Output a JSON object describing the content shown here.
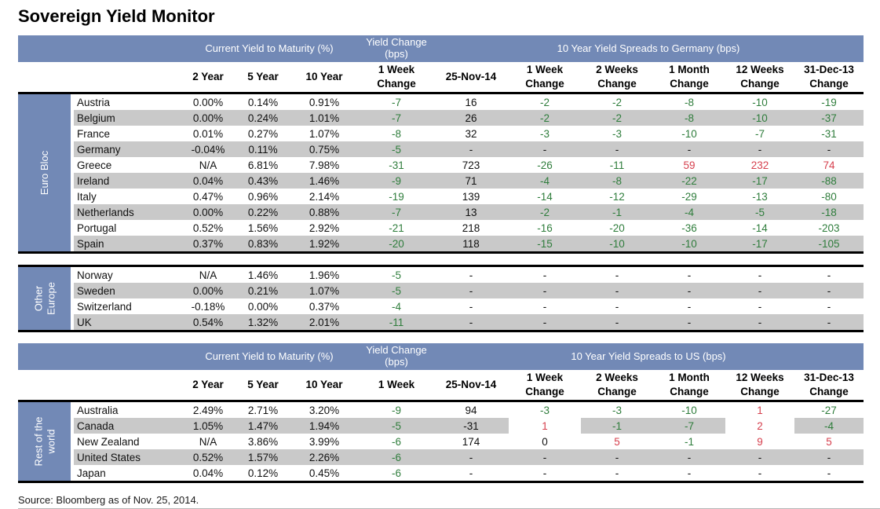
{
  "title": "Sovereign Yield Monitor",
  "source": "Source: Bloomberg as of Nov. 25, 2014.",
  "colors": {
    "header_blue": "#7289b6",
    "stripe_gray": "#c9c9c9",
    "green": "#2f7d3c",
    "red": "#d6404e",
    "text_black": "#111111"
  },
  "tables": [
    {
      "group_headers": [
        "Current Yield to Maturity (%)",
        "Yield Change\n(bps)",
        "10 Year Yield Spreads to Germany (bps)"
      ],
      "col_headers": [
        "2 Year",
        "5 Year",
        "10 Year",
        "1 Week\nChange",
        "25-Nov-14",
        "1 Week\nChange",
        "2 Weeks\nChange",
        "1 Month\nChange",
        "12 Weeks\nChange",
        "31-Dec-13\nChange"
      ],
      "sections": [
        {
          "label": "Euro Bloc",
          "rows": [
            {
              "name": "Austria",
              "cells": [
                [
                  "0.00%"
                ],
                [
                  "0.14%"
                ],
                [
                  "0.91%"
                ],
                [
                  "-7",
                  "g"
                ],
                [
                  "16"
                ],
                [
                  "-2",
                  "g"
                ],
                [
                  "-2",
                  "g"
                ],
                [
                  "-8",
                  "g"
                ],
                [
                  "-10",
                  "g"
                ],
                [
                  "-19",
                  "g"
                ]
              ]
            },
            {
              "name": "Belgium",
              "cells": [
                [
                  "0.00%"
                ],
                [
                  "0.24%"
                ],
                [
                  "1.01%"
                ],
                [
                  "-7",
                  "g"
                ],
                [
                  "26"
                ],
                [
                  "-2",
                  "g"
                ],
                [
                  "-2",
                  "g"
                ],
                [
                  "-8",
                  "g"
                ],
                [
                  "-10",
                  "g"
                ],
                [
                  "-37",
                  "g"
                ]
              ]
            },
            {
              "name": "France",
              "cells": [
                [
                  "0.01%"
                ],
                [
                  "0.27%"
                ],
                [
                  "1.07%"
                ],
                [
                  "-8",
                  "g"
                ],
                [
                  "32"
                ],
                [
                  "-3",
                  "g"
                ],
                [
                  "-3",
                  "g"
                ],
                [
                  "-10",
                  "g"
                ],
                [
                  "-7",
                  "g"
                ],
                [
                  "-31",
                  "g"
                ]
              ]
            },
            {
              "name": "Germany",
              "cells": [
                [
                  "-0.04%"
                ],
                [
                  "0.11%"
                ],
                [
                  "0.75%"
                ],
                [
                  "-5",
                  "g"
                ],
                [
                  "-"
                ],
                [
                  "-"
                ],
                [
                  "-"
                ],
                [
                  "-"
                ],
                [
                  "-"
                ],
                [
                  "-"
                ]
              ]
            },
            {
              "name": "Greece",
              "cells": [
                [
                  "N/A"
                ],
                [
                  "6.81%"
                ],
                [
                  "7.98%"
                ],
                [
                  "-31",
                  "g"
                ],
                [
                  "723"
                ],
                [
                  "-26",
                  "g"
                ],
                [
                  "-11",
                  "g"
                ],
                [
                  "59",
                  "r"
                ],
                [
                  "232",
                  "r"
                ],
                [
                  "74",
                  "r"
                ]
              ]
            },
            {
              "name": "Ireland",
              "cells": [
                [
                  "0.04%"
                ],
                [
                  "0.43%"
                ],
                [
                  "1.46%"
                ],
                [
                  "-9",
                  "g"
                ],
                [
                  "71"
                ],
                [
                  "-4",
                  "g"
                ],
                [
                  "-8",
                  "g"
                ],
                [
                  "-22",
                  "g"
                ],
                [
                  "-17",
                  "g"
                ],
                [
                  "-88",
                  "g"
                ]
              ]
            },
            {
              "name": "Italy",
              "cells": [
                [
                  "0.47%"
                ],
                [
                  "0.96%"
                ],
                [
                  "2.14%"
                ],
                [
                  "-19",
                  "g"
                ],
                [
                  "139"
                ],
                [
                  "-14",
                  "g"
                ],
                [
                  "-12",
                  "g"
                ],
                [
                  "-29",
                  "g"
                ],
                [
                  "-13",
                  "g"
                ],
                [
                  "-80",
                  "g"
                ]
              ]
            },
            {
              "name": "Netherlands",
              "cells": [
                [
                  "0.00%"
                ],
                [
                  "0.22%"
                ],
                [
                  "0.88%"
                ],
                [
                  "-7",
                  "g"
                ],
                [
                  "13"
                ],
                [
                  "-2",
                  "g"
                ],
                [
                  "-1",
                  "g"
                ],
                [
                  "-4",
                  "g"
                ],
                [
                  "-5",
                  "g"
                ],
                [
                  "-18",
                  "g"
                ]
              ]
            },
            {
              "name": "Portugal",
              "cells": [
                [
                  "0.52%"
                ],
                [
                  "1.56%"
                ],
                [
                  "2.92%"
                ],
                [
                  "-21",
                  "g"
                ],
                [
                  "218"
                ],
                [
                  "-16",
                  "g"
                ],
                [
                  "-20",
                  "g"
                ],
                [
                  "-36",
                  "g"
                ],
                [
                  "-14",
                  "g"
                ],
                [
                  "-203",
                  "g"
                ]
              ]
            },
            {
              "name": "Spain",
              "cells": [
                [
                  "0.37%"
                ],
                [
                  "0.83%"
                ],
                [
                  "1.92%"
                ],
                [
                  "-20",
                  "g"
                ],
                [
                  "118"
                ],
                [
                  "-15",
                  "g"
                ],
                [
                  "-10",
                  "g"
                ],
                [
                  "-10",
                  "g"
                ],
                [
                  "-17",
                  "g"
                ],
                [
                  "-105",
                  "g"
                ]
              ]
            }
          ]
        },
        {
          "label": "Other Europe",
          "rows": [
            {
              "name": "Norway",
              "cells": [
                [
                  "N/A"
                ],
                [
                  "1.46%"
                ],
                [
                  "1.96%"
                ],
                [
                  "-5",
                  "g"
                ],
                [
                  "-"
                ],
                [
                  "-"
                ],
                [
                  "-"
                ],
                [
                  "-"
                ],
                [
                  "-"
                ],
                [
                  "-"
                ]
              ]
            },
            {
              "name": "Sweden",
              "cells": [
                [
                  "0.00%"
                ],
                [
                  "0.21%"
                ],
                [
                  "1.07%"
                ],
                [
                  "-5",
                  "g"
                ],
                [
                  "-"
                ],
                [
                  "-"
                ],
                [
                  "-"
                ],
                [
                  "-"
                ],
                [
                  "-"
                ],
                [
                  "-"
                ]
              ]
            },
            {
              "name": "Switzerland",
              "cells": [
                [
                  "-0.18%"
                ],
                [
                  "0.00%"
                ],
                [
                  "0.37%"
                ],
                [
                  "-4",
                  "g"
                ],
                [
                  "-"
                ],
                [
                  "-"
                ],
                [
                  "-"
                ],
                [
                  "-"
                ],
                [
                  "-"
                ],
                [
                  "-"
                ]
              ]
            },
            {
              "name": "UK",
              "cells": [
                [
                  "0.54%"
                ],
                [
                  "1.32%"
                ],
                [
                  "2.01%"
                ],
                [
                  "-11",
                  "g"
                ],
                [
                  "-"
                ],
                [
                  "-"
                ],
                [
                  "-"
                ],
                [
                  "-"
                ],
                [
                  "-"
                ],
                [
                  "-"
                ]
              ]
            }
          ]
        }
      ]
    },
    {
      "group_headers": [
        "Current Yield to Maturity (%)",
        "Yield Change\n(bps)",
        "10 Year Yield Spreads to US (bps)"
      ],
      "col_headers": [
        "2 Year",
        "5 Year",
        "10 Year",
        "1 Week",
        "25-Nov-14",
        "1 Week\nChange",
        "2 Weeks\nChange",
        "1 Month\nChange",
        "12 Weeks\nChange",
        "31-Dec-13\nChange"
      ],
      "sections": [
        {
          "label": "Rest of the world",
          "rows": [
            {
              "name": "Australia",
              "cells": [
                [
                  "2.49%"
                ],
                [
                  "2.71%"
                ],
                [
                  "3.20%"
                ],
                [
                  "-9",
                  "g"
                ],
                [
                  "94"
                ],
                [
                  "-3",
                  "g"
                ],
                [
                  "-3",
                  "g"
                ],
                [
                  "-10",
                  "g"
                ],
                [
                  "1",
                  "r"
                ],
                [
                  "-27",
                  "g"
                ]
              ]
            },
            {
              "name": "Canada",
              "cells": [
                [
                  "1.05%"
                ],
                [
                  "1.47%"
                ],
                [
                  "1.94%"
                ],
                [
                  "-5",
                  "g"
                ],
                [
                  "-31"
                ],
                [
                  "1",
                  "r",
                  "w"
                ],
                [
                  "-1",
                  "g"
                ],
                [
                  "-7",
                  "g"
                ],
                [
                  "2",
                  "r",
                  "w"
                ],
                [
                  "-4",
                  "g"
                ]
              ]
            },
            {
              "name": "New Zealand",
              "cells": [
                [
                  "N/A"
                ],
                [
                  "3.86%"
                ],
                [
                  "3.99%"
                ],
                [
                  "-6",
                  "g"
                ],
                [
                  "174"
                ],
                [
                  "0"
                ],
                [
                  "5",
                  "r"
                ],
                [
                  "-1",
                  "g"
                ],
                [
                  "9",
                  "r"
                ],
                [
                  "5",
                  "r"
                ]
              ]
            },
            {
              "name": "United States",
              "cells": [
                [
                  "0.52%"
                ],
                [
                  "1.57%"
                ],
                [
                  "2.26%"
                ],
                [
                  "-6",
                  "g"
                ],
                [
                  "-"
                ],
                [
                  "-"
                ],
                [
                  "-"
                ],
                [
                  "-"
                ],
                [
                  "-"
                ],
                [
                  "-"
                ]
              ]
            },
            {
              "name": "Japan",
              "cells": [
                [
                  "0.04%"
                ],
                [
                  "0.12%"
                ],
                [
                  "0.45%"
                ],
                [
                  "-6",
                  "g"
                ],
                [
                  "-"
                ],
                [
                  "-"
                ],
                [
                  "-"
                ],
                [
                  "-"
                ],
                [
                  "-"
                ],
                [
                  "-"
                ]
              ]
            }
          ]
        }
      ]
    }
  ]
}
